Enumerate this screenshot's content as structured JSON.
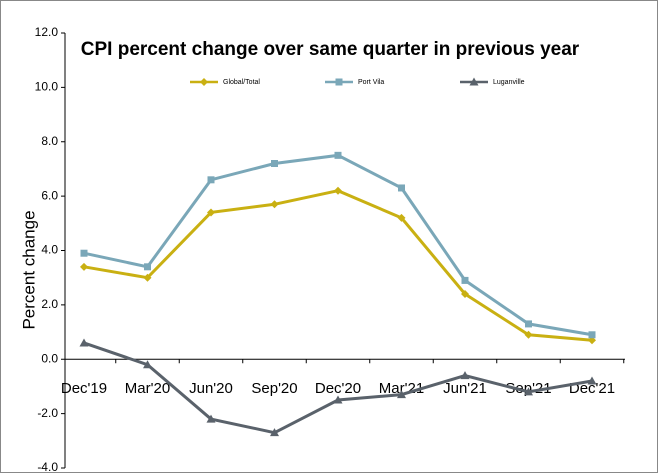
{
  "chart_data": {
    "type": "line",
    "title": "CPI percent change over same quarter in previous year",
    "y_label": "Percent change",
    "categories": [
      "Dec'19",
      "Mar'20",
      "Jun'20",
      "Sep'20",
      "Dec'20",
      "Mar'21",
      "Jun'21",
      "Sep'21",
      "Dec'21"
    ],
    "series": [
      {
        "name": "Global/Total",
        "color": "#c9b012",
        "marker": "diamond",
        "values": [
          3.4,
          3.0,
          5.4,
          5.7,
          6.2,
          5.2,
          2.4,
          0.9,
          0.7
        ]
      },
      {
        "name": "Port Vila",
        "color": "#7aa7b8",
        "marker": "square",
        "values": [
          3.9,
          3.4,
          6.6,
          7.2,
          7.5,
          6.3,
          2.9,
          1.3,
          0.9
        ]
      },
      {
        "name": "Luganville",
        "color": "#5a626b",
        "marker": "triangle",
        "values": [
          0.6,
          -0.2,
          -2.2,
          -2.7,
          -1.5,
          -1.3,
          -0.6,
          -1.2,
          -0.8
        ]
      }
    ],
    "ylim": [
      -4,
      12
    ],
    "yticks": [
      {
        "value": -4,
        "label": "-4.0"
      },
      {
        "value": -2,
        "label": "-2.0"
      },
      {
        "value": 0,
        "label": "0.0"
      },
      {
        "value": 2,
        "label": "2.0"
      },
      {
        "value": 4,
        "label": "4.0"
      },
      {
        "value": 6,
        "label": "6.0"
      },
      {
        "value": 8,
        "label": "8.0"
      },
      {
        "value": 10,
        "label": "10.0"
      },
      {
        "value": 12,
        "label": "12.0"
      }
    ],
    "legend": "top"
  }
}
